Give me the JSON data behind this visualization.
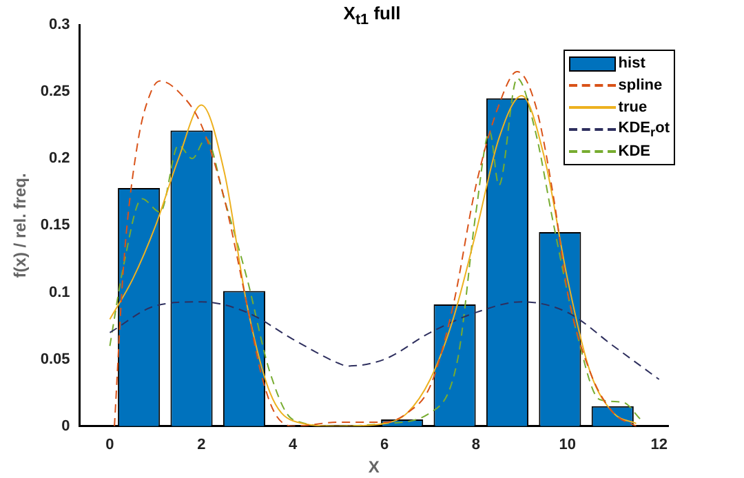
{
  "chart_data": {
    "type": "histogram",
    "title": "X$_{t1}$ full",
    "xlabel": "X",
    "ylabel": "f(x) / rel. freq.",
    "bins": [
      0.06,
      1.21,
      2.36,
      3.51,
      4.66,
      5.81,
      6.96,
      8.11,
      9.26,
      10.41,
      11.56
    ],
    "xlim": [
      -0.66,
      12.2
    ],
    "xticks": [
      0,
      2,
      4,
      6,
      8,
      10,
      12
    ],
    "ylim": [
      0,
      0.3
    ],
    "yticks": [
      0,
      0.05,
      0.1,
      0.15,
      0.2,
      0.25,
      0.3
    ],
    "grid": false,
    "legend": "top right",
    "series": [
      {
        "name": "hist",
        "color": "#0072bd",
        "values": [
          0.178,
          0.221,
          0.101,
          0,
          0,
          0.005,
          0.091,
          0.245,
          0.145,
          0.015
        ]
      },
      {
        "name": "spline",
        "type": "line",
        "line_style": "dashed",
        "color": "#d95319",
        "x": [
          0.1,
          0.3,
          0.6,
          0.9,
          1.1,
          1.5,
          2,
          2.5,
          3,
          3.3,
          3.6,
          4,
          5,
          6,
          6.5,
          7,
          7.5,
          8,
          8.5,
          8.9,
          9.3,
          9.7,
          10,
          10.5,
          11,
          11.5
        ],
        "values": [
          0,
          0.12,
          0.21,
          0.25,
          0.258,
          0.25,
          0.225,
          0.17,
          0.09,
          0.04,
          0.01,
          0,
          0.003,
          0.003,
          0.01,
          0.03,
          0.09,
          0.18,
          0.24,
          0.265,
          0.24,
          0.17,
          0.1,
          0.04,
          0.01,
          0
        ]
      },
      {
        "name": "true",
        "type": "line",
        "line_style": "solid",
        "color": "#edb120",
        "x": [
          0,
          0.5,
          1,
          1.5,
          2,
          2.5,
          3,
          3.5,
          4,
          5,
          6,
          6.5,
          7,
          7.5,
          8,
          8.5,
          9,
          9.5,
          10,
          10.5,
          11,
          11.5
        ],
        "values": [
          0.08,
          0.11,
          0.15,
          0.2,
          0.24,
          0.19,
          0.09,
          0.025,
          0.004,
          0,
          0.002,
          0.01,
          0.035,
          0.08,
          0.145,
          0.215,
          0.247,
          0.2,
          0.11,
          0.04,
          0.01,
          0.002
        ]
      },
      {
        "name": "KDE$_{r}$ot",
        "type": "line",
        "line_style": "dashed",
        "color": "#2e2f5e",
        "x": [
          0,
          1,
          2,
          3,
          4,
          5,
          5.2,
          6,
          7,
          8,
          9,
          10,
          11,
          12
        ],
        "values": [
          0.07,
          0.09,
          0.093,
          0.085,
          0.065,
          0.047,
          0.045,
          0.05,
          0.07,
          0.085,
          0.093,
          0.085,
          0.06,
          0.035
        ]
      },
      {
        "name": "KDE",
        "type": "line",
        "line_style": "dashed",
        "color": "#77ac30",
        "x": [
          0,
          0.3,
          0.7,
          1.1,
          1.5,
          1.8,
          2.1,
          2.5,
          3,
          3.5,
          4,
          5,
          6,
          7,
          7.6,
          8,
          8.3,
          8.5,
          8.9,
          9.3,
          9.7,
          10.2,
          10.7,
          11.2,
          11.6
        ],
        "values": [
          0.06,
          0.12,
          0.17,
          0.16,
          0.21,
          0.2,
          0.215,
          0.17,
          0.11,
          0.04,
          0.005,
          0,
          0.002,
          0.01,
          0.05,
          0.16,
          0.22,
          0.18,
          0.26,
          0.22,
          0.15,
          0.07,
          0.02,
          0.018,
          0.005
        ]
      }
    ]
  }
}
